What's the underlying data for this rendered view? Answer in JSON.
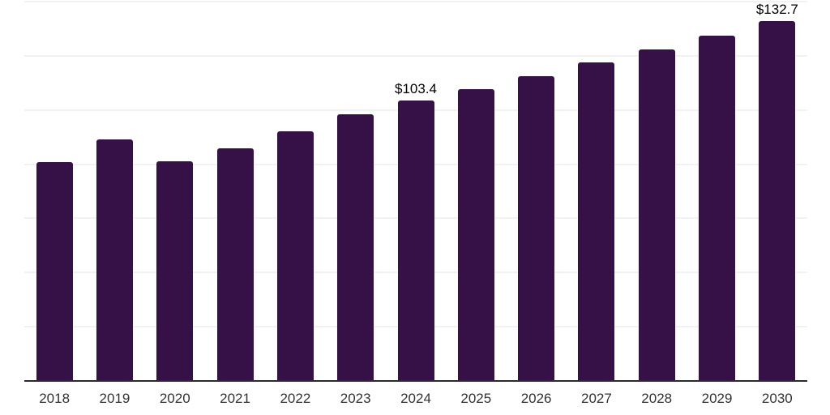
{
  "chart_data": {
    "type": "bar",
    "title": "",
    "xlabel": "",
    "ylabel": "",
    "categories": [
      "2018",
      "2019",
      "2020",
      "2021",
      "2022",
      "2023",
      "2024",
      "2025",
      "2026",
      "2027",
      "2028",
      "2029",
      "2030"
    ],
    "values": [
      80.7,
      89.1,
      81.1,
      86.0,
      92.0,
      98.4,
      103.4,
      107.7,
      112.4,
      117.5,
      122.3,
      127.5,
      132.7
    ],
    "annotations": [
      {
        "category": "2024",
        "text": "$103.4"
      },
      {
        "category": "2030",
        "text": "$132.7"
      }
    ],
    "ylim": [
      0,
      140
    ],
    "gridline_step": 20,
    "grid": "horizontal",
    "y_axis_tick_labels": "none",
    "legend": "none"
  },
  "colors": {
    "background": "#ffffff",
    "bar": "#351148",
    "gridline": "#f2f2f2",
    "axis_line": "#2b2b2b",
    "x_tick_label": "#333333",
    "value_label": "#000000"
  }
}
